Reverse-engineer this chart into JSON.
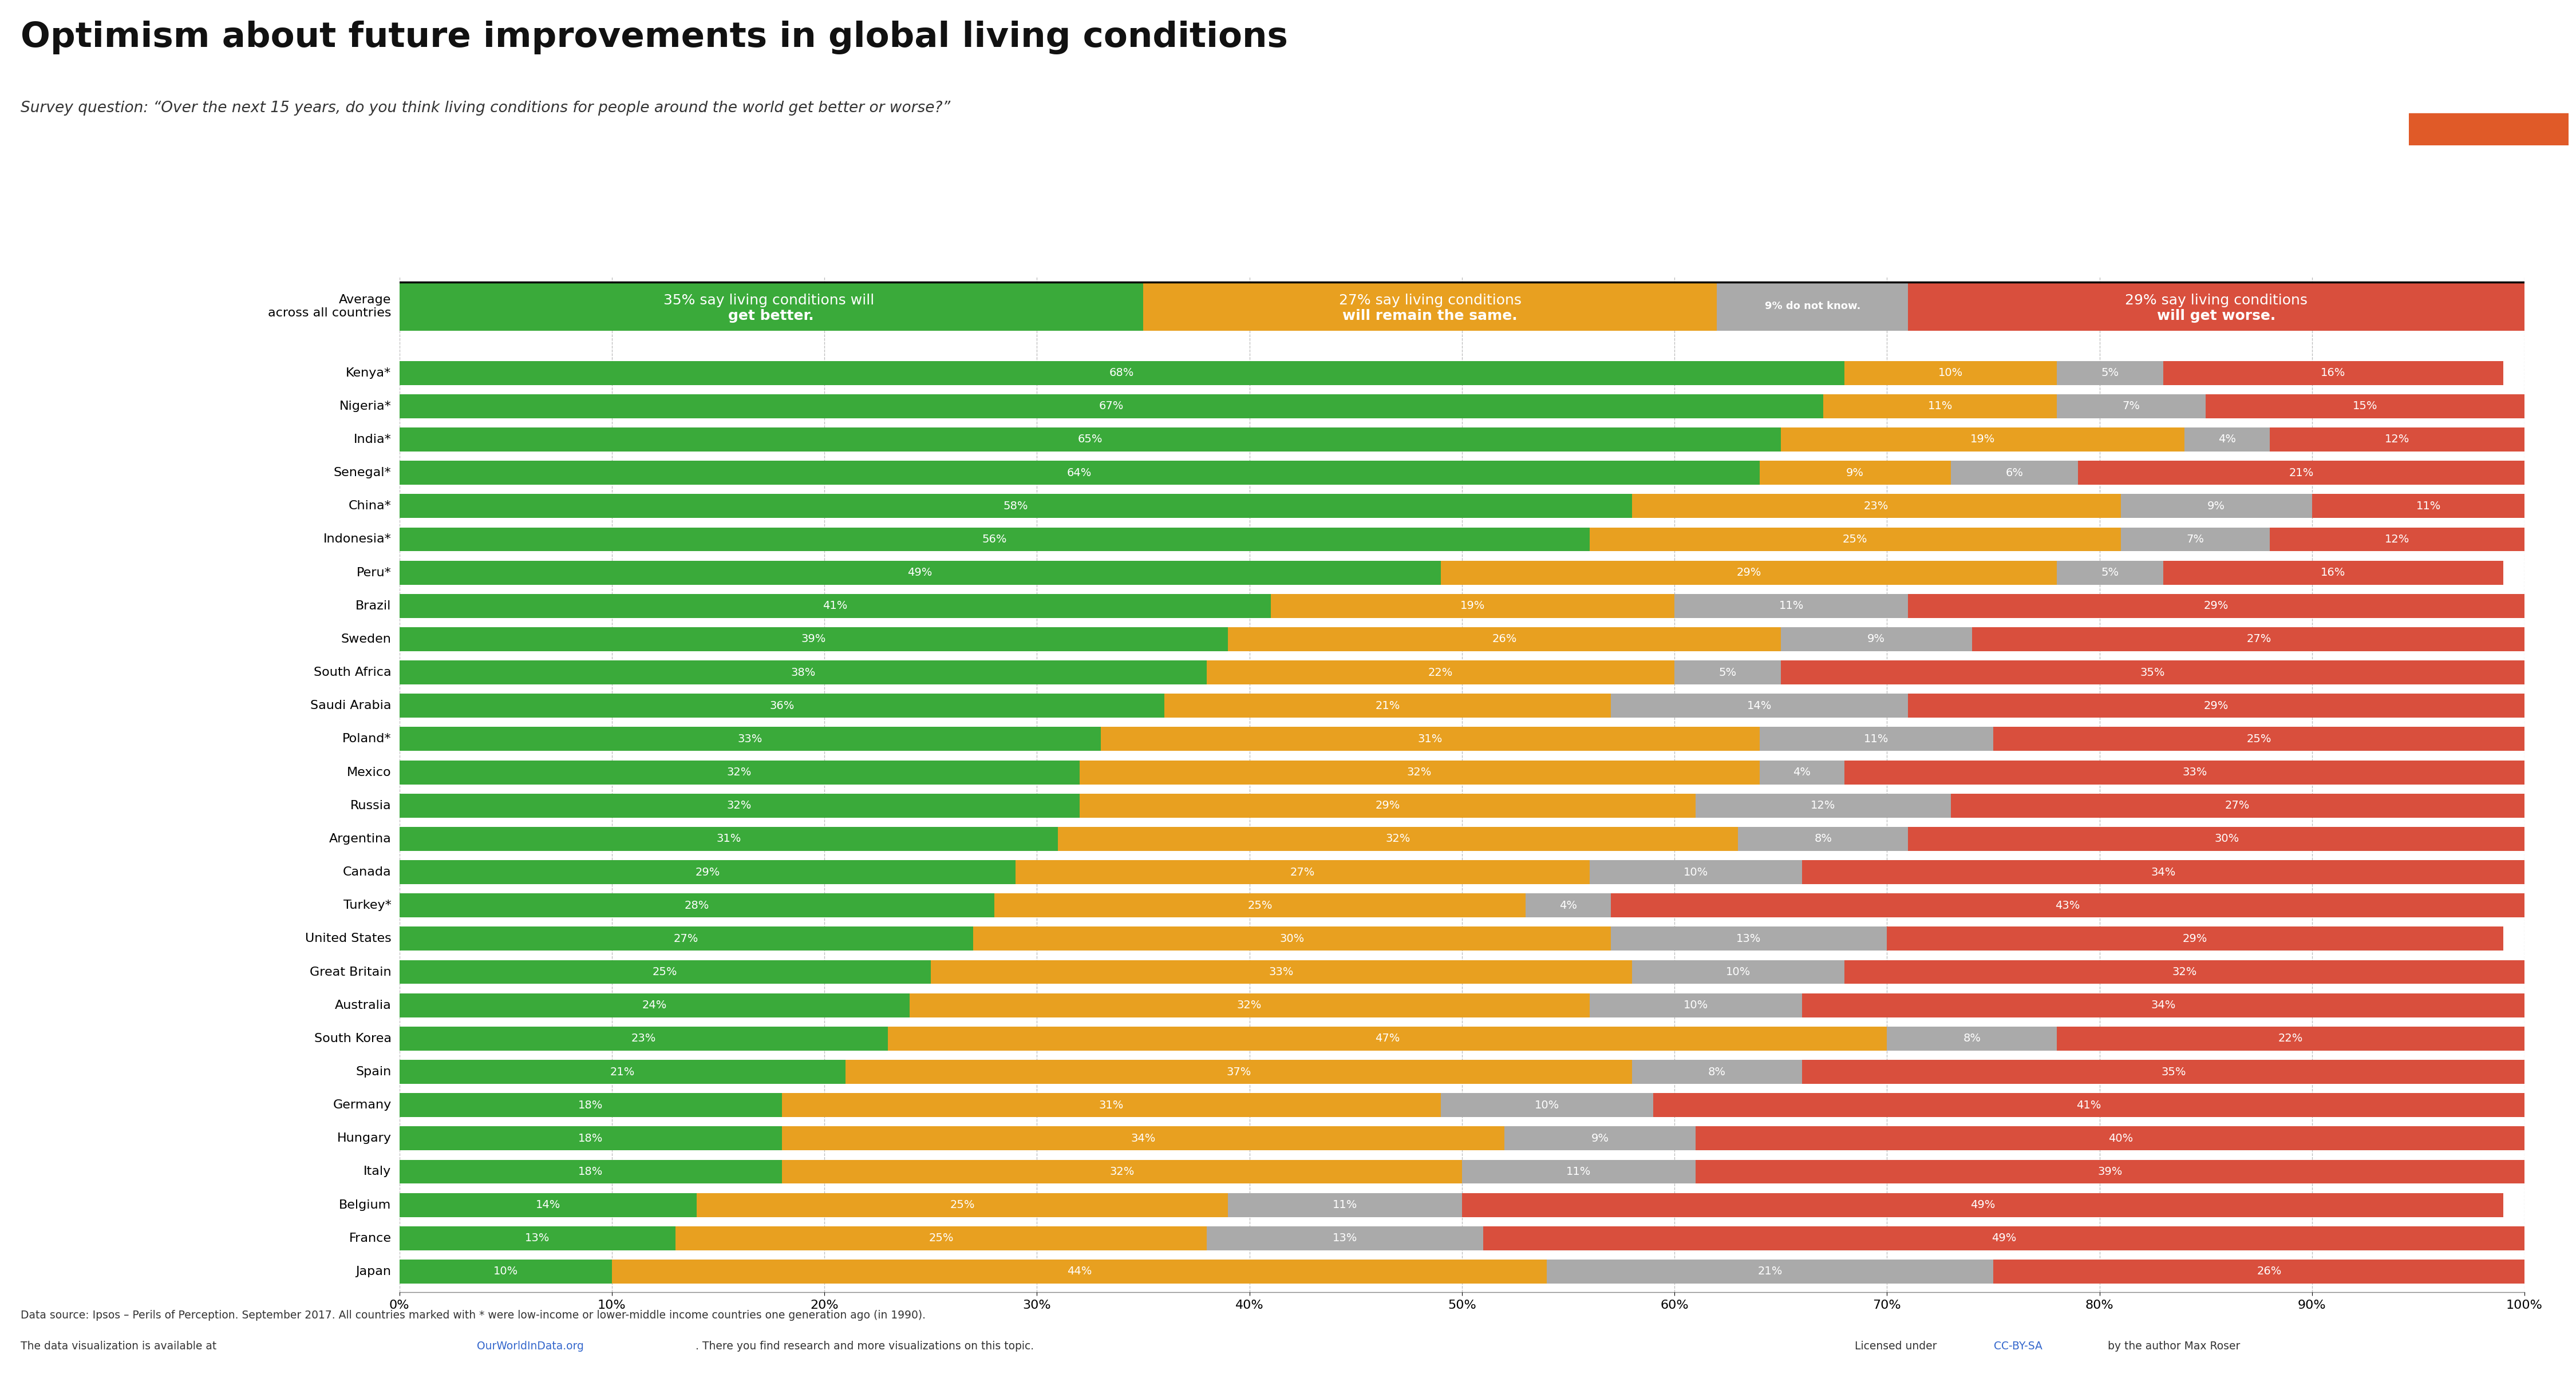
{
  "title": "Optimism about future improvements in global living conditions",
  "subtitle": "Survey question: “Over the next 15 years, do you think living conditions for people around the world get better or worse?”",
  "footer_line1": "Data source: Ipsos – Perils of Perception. September 2017. All countries marked with * were low-income or lower-middle income countries one generation ago (in 1990).",
  "footer_line2": "The data visualization is available at OurWorldInData.org. There you find research and more visualizations on this topic.",
  "footer_line2_link": "Licensed under CC-BY-SA by the author Max Roser",
  "colors": {
    "better": "#3aaa3a",
    "same": "#e8a020",
    "dont_know": "#aaaaaa",
    "worse": "#d94f3d",
    "background": "#ffffff",
    "title_bg": "#1a2e4a",
    "orange_accent": "#e05a28"
  },
  "average": {
    "label_line1": "Average",
    "label_line2": "across all countries",
    "better": 35,
    "same": 27,
    "dont_know": 9,
    "worse": 29
  },
  "countries": [
    {
      "name": "Kenya*",
      "better": 68,
      "same": 10,
      "dont_know": 5,
      "worse": 16
    },
    {
      "name": "Nigeria*",
      "better": 67,
      "same": 11,
      "dont_know": 7,
      "worse": 15
    },
    {
      "name": "India*",
      "better": 65,
      "same": 19,
      "dont_know": 4,
      "worse": 12
    },
    {
      "name": "Senegal*",
      "better": 64,
      "same": 9,
      "dont_know": 6,
      "worse": 21
    },
    {
      "name": "China*",
      "better": 58,
      "same": 23,
      "dont_know": 9,
      "worse": 11
    },
    {
      "name": "Indonesia*",
      "better": 56,
      "same": 25,
      "dont_know": 7,
      "worse": 12
    },
    {
      "name": "Peru*",
      "better": 49,
      "same": 29,
      "dont_know": 5,
      "worse": 16
    },
    {
      "name": "Brazil",
      "better": 41,
      "same": 19,
      "dont_know": 11,
      "worse": 29
    },
    {
      "name": "Sweden",
      "better": 39,
      "same": 26,
      "dont_know": 9,
      "worse": 27
    },
    {
      "name": "South Africa",
      "better": 38,
      "same": 22,
      "dont_know": 5,
      "worse": 35
    },
    {
      "name": "Saudi Arabia",
      "better": 36,
      "same": 21,
      "dont_know": 14,
      "worse": 29
    },
    {
      "name": "Poland*",
      "better": 33,
      "same": 31,
      "dont_know": 11,
      "worse": 25
    },
    {
      "name": "Mexico",
      "better": 32,
      "same": 32,
      "dont_know": 4,
      "worse": 33
    },
    {
      "name": "Russia",
      "better": 32,
      "same": 29,
      "dont_know": 12,
      "worse": 27
    },
    {
      "name": "Argentina",
      "better": 31,
      "same": 32,
      "dont_know": 8,
      "worse": 30
    },
    {
      "name": "Canada",
      "better": 29,
      "same": 27,
      "dont_know": 10,
      "worse": 34
    },
    {
      "name": "Turkey*",
      "better": 28,
      "same": 25,
      "dont_know": 4,
      "worse": 43
    },
    {
      "name": "United States",
      "better": 27,
      "same": 30,
      "dont_know": 13,
      "worse": 29
    },
    {
      "name": "Great Britain",
      "better": 25,
      "same": 33,
      "dont_know": 10,
      "worse": 32
    },
    {
      "name": "Australia",
      "better": 24,
      "same": 32,
      "dont_know": 10,
      "worse": 34
    },
    {
      "name": "South Korea",
      "better": 23,
      "same": 47,
      "dont_know": 8,
      "worse": 22
    },
    {
      "name": "Spain",
      "better": 21,
      "same": 37,
      "dont_know": 8,
      "worse": 35
    },
    {
      "name": "Germany",
      "better": 18,
      "same": 31,
      "dont_know": 10,
      "worse": 41
    },
    {
      "name": "Hungary",
      "better": 18,
      "same": 34,
      "dont_know": 9,
      "worse": 40
    },
    {
      "name": "Italy",
      "better": 18,
      "same": 32,
      "dont_know": 11,
      "worse": 39
    },
    {
      "name": "Belgium",
      "better": 14,
      "same": 25,
      "dont_know": 11,
      "worse": 49
    },
    {
      "name": "France",
      "better": 13,
      "same": 25,
      "dont_know": 13,
      "worse": 49
    },
    {
      "name": "Japan",
      "better": 10,
      "same": 44,
      "dont_know": 21,
      "worse": 26
    }
  ]
}
